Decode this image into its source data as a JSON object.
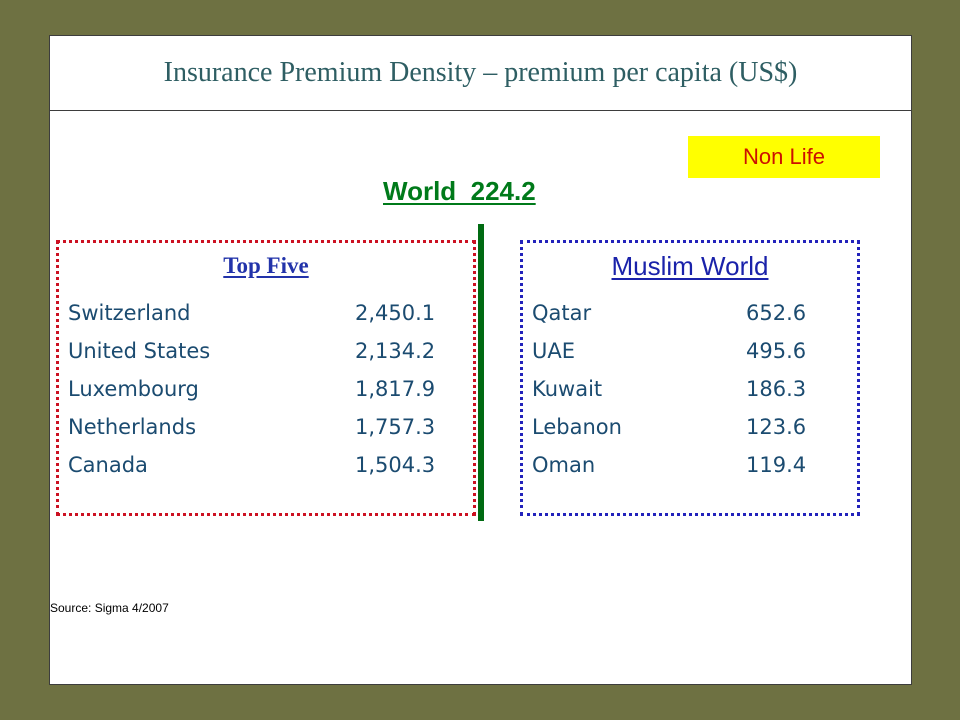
{
  "title": "Insurance Premium Density – premium per capita (US$)",
  "badge": "Non Life",
  "world": "World  224.2",
  "top_five": {
    "heading": "Top Five",
    "rows": [
      {
        "country": "Switzerland",
        "value": "2,450.1"
      },
      {
        "country": "United States",
        "value": "2,134.2"
      },
      {
        "country": "Luxembourg",
        "value": "1,817.9"
      },
      {
        "country": "Netherlands",
        "value": "1,757.3"
      },
      {
        "country": "Canada",
        "value": "1,504.3"
      }
    ]
  },
  "muslim_world": {
    "heading": "Muslim World",
    "rows": [
      {
        "country": "Qatar",
        "value": "652.6"
      },
      {
        "country": "UAE",
        "value": "495.6"
      },
      {
        "country": "Kuwait",
        "value": "186.3"
      },
      {
        "country": "Lebanon",
        "value": "123.6"
      },
      {
        "country": "Oman",
        "value": "119.4"
      }
    ]
  },
  "source": "Source: Sigma 4/2007",
  "colors": {
    "background": "#6e7142",
    "title": "#2e5e63",
    "world": "#007a1a",
    "badge_bg": "#ffff00",
    "badge_text": "#cc1100",
    "left_border": "#cc1122",
    "right_border": "#2222bb",
    "row_text": "#1b4b70"
  }
}
